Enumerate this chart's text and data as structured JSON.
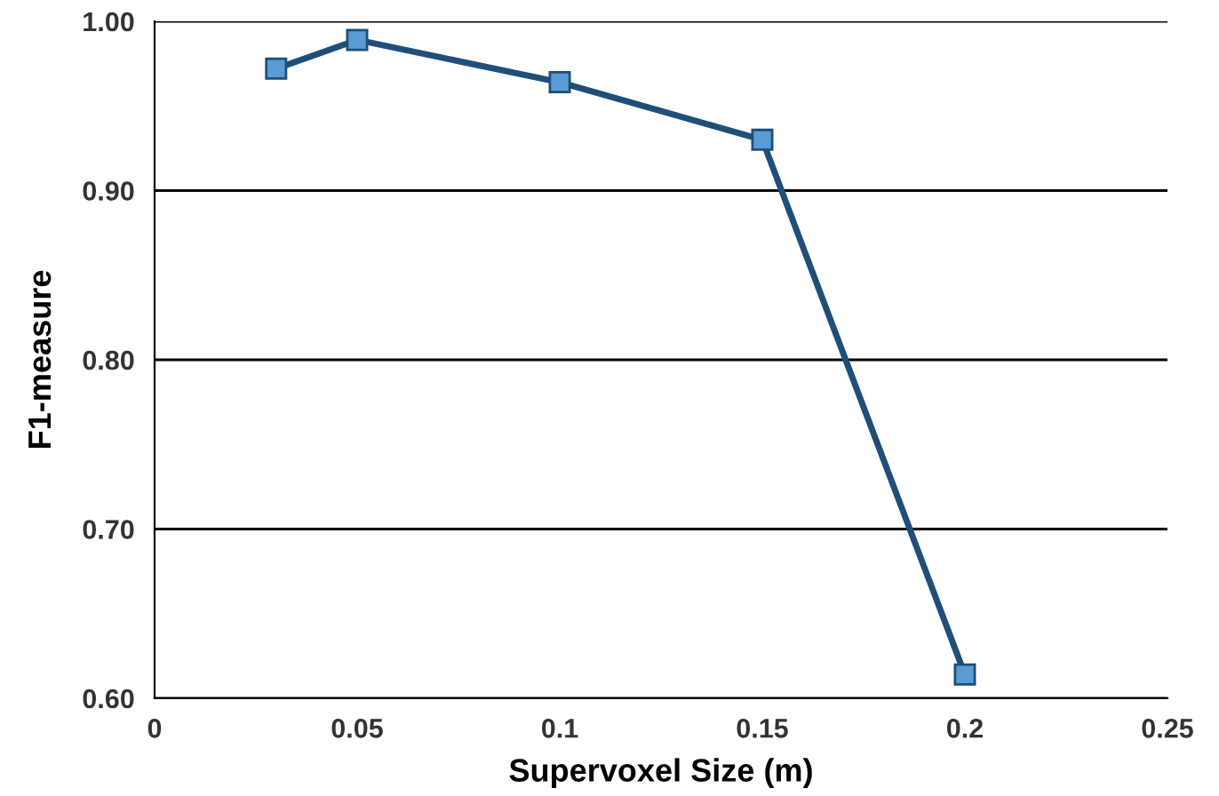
{
  "chart_data": {
    "type": "line",
    "xlabel": "Supervoxel Size (m)",
    "ylabel": "F1-measure",
    "x": [
      0.03,
      0.05,
      0.1,
      0.15,
      0.2
    ],
    "series": [
      {
        "color": "#1f4e79",
        "values": [
          0.972,
          0.989,
          0.964,
          0.93,
          0.614
        ]
      }
    ],
    "xlim": [
      0,
      0.25
    ],
    "xticks": [
      0,
      0.05,
      0.1,
      0.15,
      0.2,
      0.25
    ],
    "ylim": [
      0.6,
      1.0
    ],
    "yticks": [
      {
        "value": 0.6,
        "label": "0.60"
      },
      {
        "value": 0.7,
        "label": "0.70"
      },
      {
        "value": 0.8,
        "label": "0.80"
      },
      {
        "value": 0.9,
        "label": "0.90"
      },
      {
        "value": 1.0,
        "label": "1.00"
      }
    ],
    "grid": "y",
    "marker": "square",
    "line_style": "solid",
    "legend": false
  }
}
